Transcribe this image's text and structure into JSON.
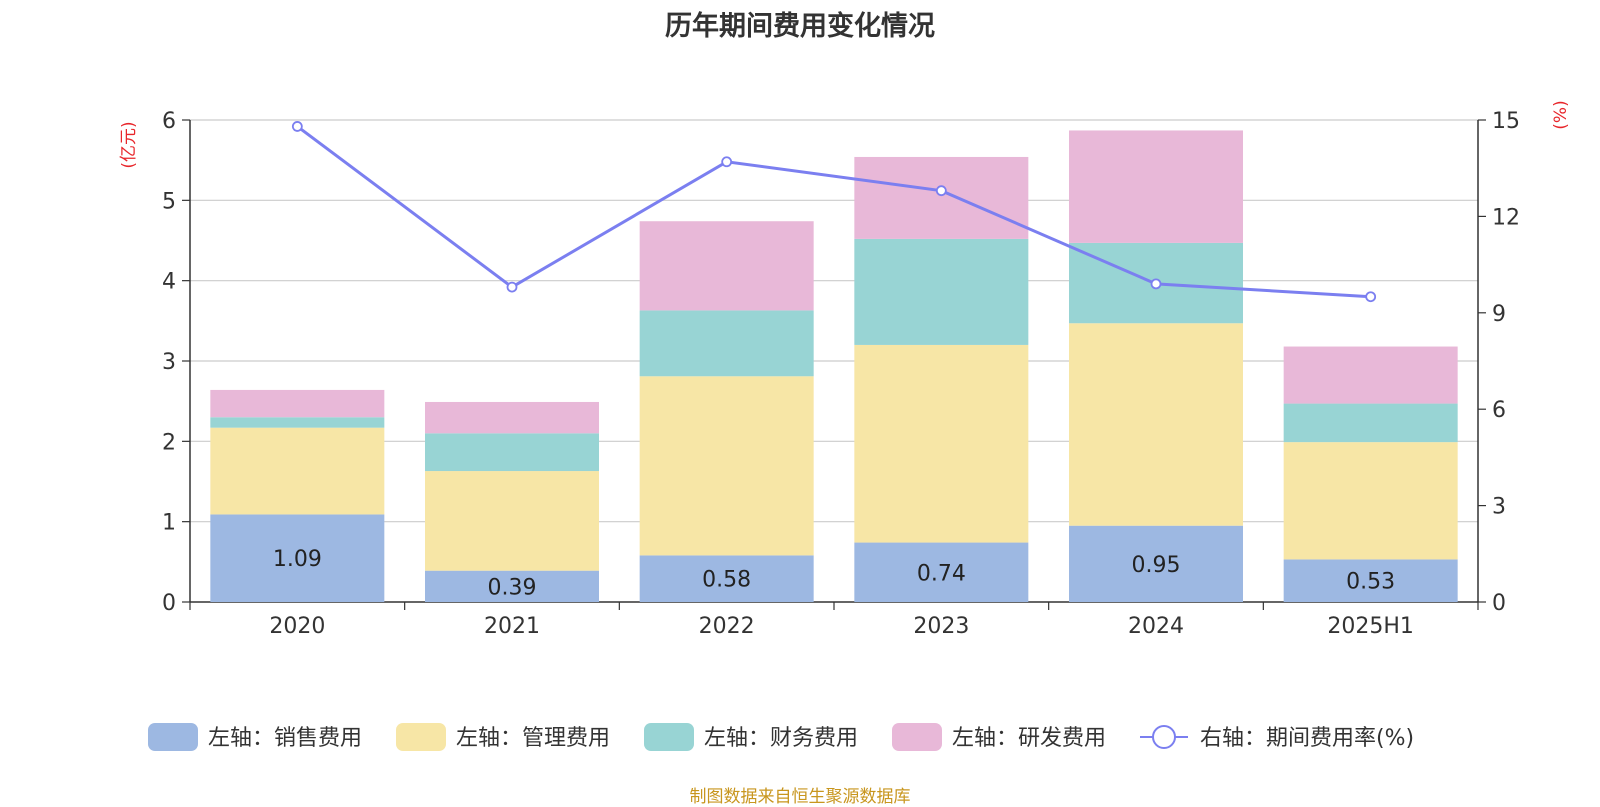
{
  "chart_data": {
    "type": "bar",
    "title": "历年期间费用变化情况",
    "categories": [
      "2020",
      "2021",
      "2022",
      "2023",
      "2024",
      "2025H1"
    ],
    "left_axis": {
      "unit": "(亿元)",
      "range": [
        0,
        6
      ],
      "ticks": [
        "0",
        "1",
        "2",
        "3",
        "4",
        "5",
        "6"
      ]
    },
    "right_axis": {
      "unit": "(%)",
      "range": [
        0,
        15
      ],
      "ticks": [
        "0",
        "3",
        "6",
        "9",
        "12",
        "15"
      ]
    },
    "stacked": true,
    "series": [
      {
        "name": "左轴：销售费用",
        "axis": "left",
        "color": "#9db8e2",
        "values": [
          1.09,
          0.39,
          0.58,
          0.74,
          0.95,
          0.53
        ],
        "labels": [
          "1.09",
          "0.39",
          "0.58",
          "0.74",
          "0.95",
          "0.53"
        ]
      },
      {
        "name": "左轴：管理费用",
        "axis": "left",
        "color": "#f7e6a6",
        "values": [
          1.08,
          1.24,
          2.23,
          2.46,
          2.52,
          1.46
        ]
      },
      {
        "name": "左轴：财务费用",
        "axis": "left",
        "color": "#98d4d4",
        "values": [
          0.13,
          0.47,
          0.82,
          1.32,
          1.0,
          0.48
        ]
      },
      {
        "name": "左轴：研发费用",
        "axis": "left",
        "color": "#e8b8d8",
        "values": [
          0.34,
          0.39,
          1.11,
          1.02,
          1.4,
          0.71
        ]
      },
      {
        "name": "右轴：期间费用率(%)",
        "axis": "right",
        "type": "line",
        "color": "#7b7ff0",
        "values": [
          14.8,
          9.8,
          13.7,
          12.8,
          9.9,
          9.5
        ]
      }
    ],
    "grid": true,
    "legend_position": "bottom"
  },
  "footer": {
    "source": "制图数据来自恒生聚源数据库"
  }
}
